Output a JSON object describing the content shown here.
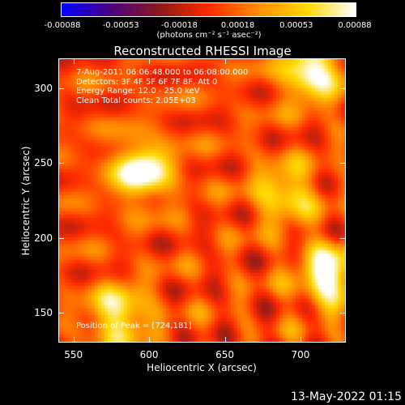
{
  "chart_data": {
    "type": "heatmap",
    "title": "Reconstructed RHESSI Image",
    "xlabel": "Heliocentric X (arcsec)",
    "ylabel": "Heliocentric Y (arcsec)",
    "xlim": [
      540,
      730
    ],
    "ylim": [
      130,
      320
    ],
    "x_ticks": [
      550,
      600,
      650,
      700
    ],
    "y_ticks": [
      150,
      200,
      250,
      300
    ],
    "colorbar": {
      "ticks": [
        "-0.00088",
        "-0.00053",
        "-0.00018",
        "0.00018",
        "0.00053",
        "0.00088"
      ],
      "min": -0.00088,
      "max": 0.00088,
      "units": "(photons cm⁻² s⁻¹ asec⁻²)",
      "colormap": [
        "#0000ff",
        "#4b0082",
        "#8b1a1a",
        "#ff2a00",
        "#ff8c00",
        "#ffd700",
        "#ffffff"
      ]
    },
    "annotations": [
      "7-Aug-2011 06:06:48.000 to 06:08:00.000",
      "Detectors: 3F 4F 5F 6F 7F 8F, Att 0",
      "Energy Range: 12.0 - 25.0 keV",
      "Clean     Total counts: 2.05E+03"
    ],
    "peak_label": "Position of Peak = [724,181]",
    "bright_sources": [
      {
        "x": 595,
        "y": 245,
        "intensity": 0.00088
      },
      {
        "x": 708,
        "y": 312,
        "intensity": 0.00085
      },
      {
        "x": 720,
        "y": 175,
        "intensity": 0.00088
      },
      {
        "x": 580,
        "y": 148,
        "intensity": 0.0007
      },
      {
        "x": 690,
        "y": 230,
        "intensity": 0.0006
      }
    ],
    "grid": false
  },
  "footer": {
    "timestamp": "13-May-2022 01:15"
  }
}
